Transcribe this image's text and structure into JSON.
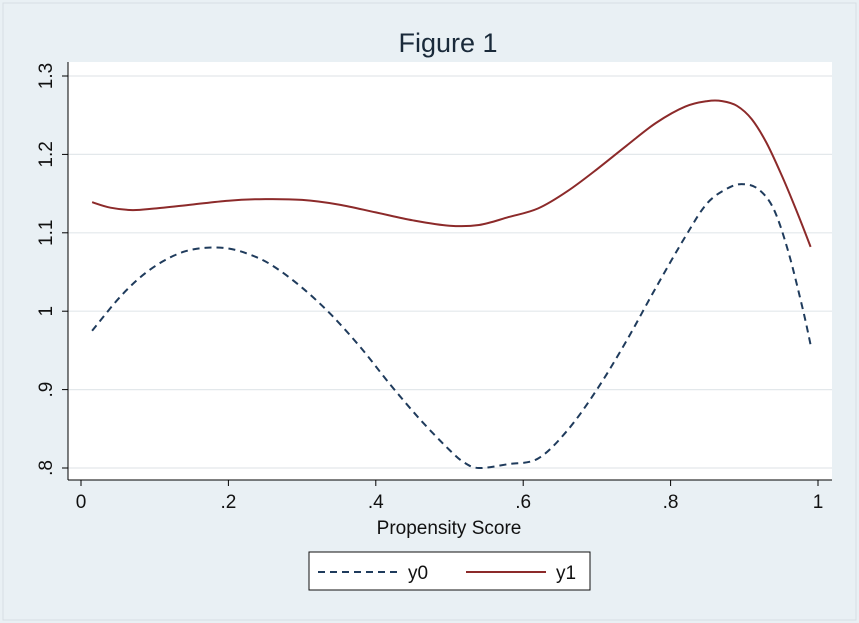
{
  "chart_data": {
    "type": "line",
    "title": "Figure 1",
    "xlabel": "Propensity Score",
    "ylabel": "",
    "xlim": [
      0,
      1
    ],
    "ylim": [
      0.8,
      1.3
    ],
    "x_ticks": [
      0,
      0.2,
      0.4,
      0.6,
      0.8,
      1
    ],
    "x_tick_labels": [
      "0",
      ".2",
      ".4",
      ".6",
      ".8",
      "1"
    ],
    "y_ticks": [
      0.8,
      0.9,
      1.0,
      1.1,
      1.2,
      1.3
    ],
    "y_tick_labels": [
      ".8",
      ".9",
      "1",
      "1.1",
      "1.2",
      "1.3"
    ],
    "grid": "horizontal",
    "legend_position": "bottom",
    "series": [
      {
        "name": "y0",
        "color": "#1f3b5c",
        "dash": "dashed",
        "x": [
          0.015,
          0.05,
          0.08,
          0.11,
          0.14,
          0.17,
          0.2,
          0.23,
          0.26,
          0.3,
          0.34,
          0.38,
          0.42,
          0.46,
          0.5,
          0.52,
          0.54,
          0.58,
          0.62,
          0.66,
          0.7,
          0.74,
          0.78,
          0.82,
          0.85,
          0.88,
          0.9,
          0.92,
          0.94,
          0.96,
          0.98,
          0.99
        ],
        "y": [
          0.975,
          1.015,
          1.043,
          1.063,
          1.076,
          1.081,
          1.08,
          1.072,
          1.058,
          1.03,
          0.995,
          0.953,
          0.906,
          0.862,
          0.823,
          0.807,
          0.8,
          0.805,
          0.812,
          0.848,
          0.9,
          0.962,
          1.03,
          1.095,
          1.138,
          1.158,
          1.162,
          1.155,
          1.13,
          1.075,
          1.0,
          0.957
        ]
      },
      {
        "name": "y1",
        "color": "#8c2a2a",
        "dash": "solid",
        "x": [
          0.015,
          0.04,
          0.07,
          0.1,
          0.15,
          0.2,
          0.25,
          0.3,
          0.35,
          0.4,
          0.45,
          0.5,
          0.54,
          0.58,
          0.62,
          0.66,
          0.7,
          0.74,
          0.78,
          0.82,
          0.85,
          0.87,
          0.89,
          0.91,
          0.93,
          0.95,
          0.97,
          0.99
        ],
        "y": [
          1.139,
          1.132,
          1.129,
          1.131,
          1.136,
          1.141,
          1.143,
          1.142,
          1.136,
          1.126,
          1.116,
          1.109,
          1.11,
          1.12,
          1.131,
          1.153,
          1.181,
          1.211,
          1.24,
          1.261,
          1.268,
          1.268,
          1.262,
          1.245,
          1.215,
          1.175,
          1.13,
          1.082
        ]
      }
    ]
  }
}
